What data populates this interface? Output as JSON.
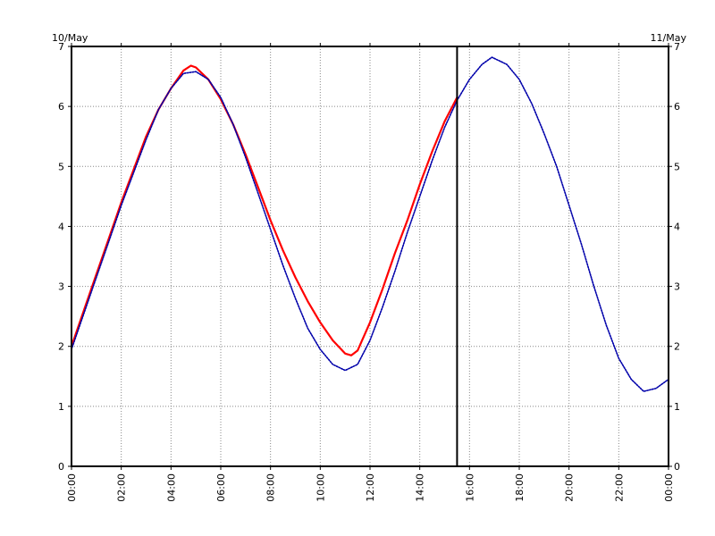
{
  "chart_data": {
    "type": "line",
    "left_date_label": "10/May",
    "right_date_label": "11/May",
    "x_tick_labels": [
      "00:00",
      "02:00",
      "04:00",
      "06:00",
      "08:00",
      "10:00",
      "12:00",
      "14:00",
      "16:00",
      "18:00",
      "20:00",
      "22:00",
      "00:00"
    ],
    "x_range_hours": [
      0,
      24
    ],
    "y_ticks": [
      0,
      1,
      2,
      3,
      4,
      5,
      6,
      7
    ],
    "ylim": [
      0,
      7
    ],
    "grid": true,
    "current_time_marker_hours": 15.5,
    "series": [
      {
        "color": "#ff0000",
        "style": "solid",
        "points": [
          [
            0,
            2.0
          ],
          [
            0.5,
            2.6
          ],
          [
            1,
            3.2
          ],
          [
            1.5,
            3.8
          ],
          [
            2,
            4.4
          ],
          [
            2.5,
            4.95
          ],
          [
            3,
            5.5
          ],
          [
            3.5,
            5.95
          ],
          [
            4,
            6.3
          ],
          [
            4.5,
            6.6
          ],
          [
            4.8,
            6.68
          ],
          [
            5,
            6.65
          ],
          [
            5.5,
            6.45
          ],
          [
            6,
            6.12
          ],
          [
            6.5,
            5.7
          ],
          [
            7,
            5.2
          ],
          [
            7.5,
            4.65
          ],
          [
            8,
            4.1
          ],
          [
            8.5,
            3.6
          ],
          [
            9,
            3.15
          ],
          [
            9.5,
            2.75
          ],
          [
            10,
            2.4
          ],
          [
            10.5,
            2.1
          ],
          [
            11,
            1.88
          ],
          [
            11.25,
            1.85
          ],
          [
            11.5,
            1.93
          ],
          [
            12,
            2.4
          ],
          [
            12.5,
            2.95
          ],
          [
            13,
            3.55
          ],
          [
            13.5,
            4.1
          ],
          [
            14,
            4.7
          ],
          [
            14.5,
            5.25
          ],
          [
            15,
            5.75
          ],
          [
            15.5,
            6.15
          ]
        ]
      },
      {
        "color": "#0000aa",
        "style": "dotted",
        "points": [
          [
            0,
            1.95
          ],
          [
            0.5,
            2.55
          ],
          [
            1,
            3.15
          ],
          [
            1.5,
            3.75
          ],
          [
            2,
            4.35
          ],
          [
            2.5,
            4.9
          ],
          [
            3,
            5.45
          ],
          [
            3.5,
            5.95
          ],
          [
            4,
            6.3
          ],
          [
            4.5,
            6.55
          ],
          [
            5,
            6.58
          ],
          [
            5.5,
            6.45
          ],
          [
            6,
            6.15
          ],
          [
            6.5,
            5.7
          ],
          [
            7,
            5.15
          ],
          [
            7.5,
            4.55
          ],
          [
            8,
            3.95
          ],
          [
            8.5,
            3.35
          ],
          [
            9,
            2.8
          ],
          [
            9.5,
            2.3
          ],
          [
            10,
            1.95
          ],
          [
            10.5,
            1.7
          ],
          [
            11,
            1.6
          ],
          [
            11.5,
            1.7
          ],
          [
            12,
            2.1
          ],
          [
            12.5,
            2.65
          ],
          [
            13,
            3.25
          ],
          [
            13.5,
            3.9
          ],
          [
            14,
            4.5
          ],
          [
            14.5,
            5.1
          ],
          [
            15,
            5.65
          ],
          [
            15.5,
            6.1
          ],
          [
            16,
            6.45
          ],
          [
            16.5,
            6.7
          ],
          [
            16.9,
            6.82
          ],
          [
            17.5,
            6.7
          ],
          [
            18,
            6.45
          ],
          [
            18.5,
            6.05
          ],
          [
            19,
            5.55
          ],
          [
            19.5,
            5.0
          ],
          [
            20,
            4.35
          ],
          [
            20.5,
            3.7
          ],
          [
            21,
            3.0
          ],
          [
            21.5,
            2.35
          ],
          [
            22,
            1.8
          ],
          [
            22.5,
            1.45
          ],
          [
            23,
            1.25
          ],
          [
            23.5,
            1.3
          ],
          [
            24,
            1.45
          ]
        ]
      }
    ]
  }
}
